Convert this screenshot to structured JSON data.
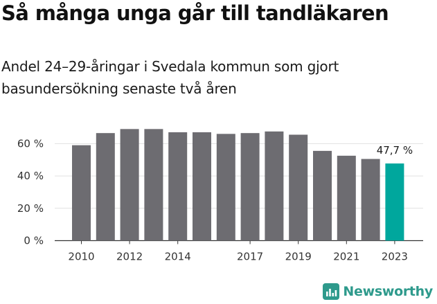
{
  "title": "Så många unga går till tandläkaren",
  "subtitle": "Andel 24–29-åringar i Svedala kommun som gjort basundersökning senaste två åren",
  "brand": {
    "name": "Newsworthy",
    "icon": "newsworthy-logo-icon",
    "color": "#2e9a8c"
  },
  "chart_data": {
    "type": "bar",
    "categories": [
      "2010",
      "2011",
      "2012",
      "2013",
      "2014",
      "2015",
      "2016",
      "2017",
      "2018",
      "2019",
      "2020",
      "2021",
      "2022",
      "2023"
    ],
    "values": [
      59,
      66.5,
      69,
      69,
      67,
      67,
      66,
      66.5,
      67.5,
      65.5,
      55.5,
      52.5,
      50.5,
      47.7
    ],
    "tick_labels_x": [
      "2010",
      "2012",
      "2014",
      "2017",
      "2019",
      "2021",
      "2023"
    ],
    "tick_labels_y": [
      "0 %",
      "20 %",
      "40 %",
      "60 %"
    ],
    "ylim": [
      0,
      70
    ],
    "grid": true,
    "bar_color": "#6d6c71",
    "highlight_color": "#00a79d",
    "annotation": {
      "category": "2023",
      "text": "47,7 %"
    }
  }
}
